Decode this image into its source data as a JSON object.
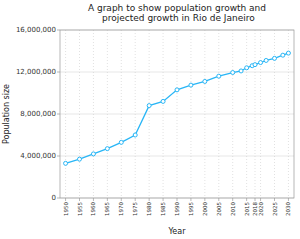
{
  "chart_data": {
    "type": "line",
    "title": "A graph to show population growth and projected growth in Rio de Janeiro",
    "x_label": "Year",
    "y_label": "Population size",
    "x": [
      1950,
      1955,
      1960,
      1965,
      1970,
      1975,
      1980,
      1985,
      1990,
      1995,
      2000,
      2005,
      2010,
      2013,
      2015,
      2017,
      2018,
      2020,
      2022,
      2025,
      2028,
      2030
    ],
    "values": [
      3300000,
      3700000,
      4200000,
      4700000,
      5300000,
      6000000,
      8800000,
      9200000,
      10300000,
      10750000,
      11100000,
      11600000,
      11950000,
      12100000,
      12400000,
      12600000,
      12700000,
      12900000,
      13100000,
      13300000,
      13600000,
      13800000
    ],
    "color": "#29b6f6",
    "marker": "circle",
    "xlim": [
      1948,
      2032
    ],
    "ylim": [
      0,
      16000000
    ],
    "xticks": [
      1950,
      1955,
      1960,
      1965,
      1970,
      1975,
      1980,
      1985,
      1990,
      1995,
      2000,
      2005,
      2010,
      2015,
      2018,
      2020,
      2025,
      2030
    ],
    "yticks": [
      0,
      {
        "value": 4000000,
        "label": "4,000,000"
      },
      {
        "value": 8000000,
        "label": "8,000,000"
      },
      {
        "value": 12000000,
        "label": "12,000,000"
      },
      {
        "value": 16000000,
        "label": "16,000,000"
      }
    ],
    "grid": true
  }
}
